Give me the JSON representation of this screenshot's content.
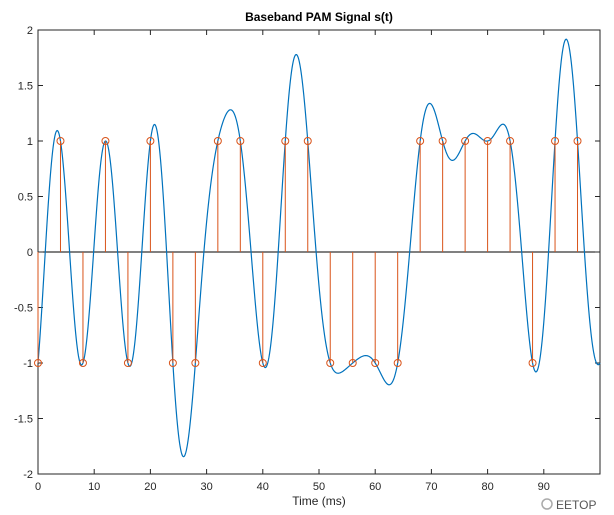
{
  "chart_data": {
    "type": "line",
    "title": "Baseband PAM Signal s(t)",
    "xlabel": "Time (ms)",
    "ylabel": "",
    "xlim": [
      0,
      100
    ],
    "ylim": [
      -2,
      2
    ],
    "xticks": [
      "0",
      "10",
      "20",
      "30",
      "40",
      "50",
      "60",
      "70",
      "80",
      "90"
    ],
    "yticks": [
      "2",
      "1.5",
      "1",
      "0.5",
      "0",
      "-0.5",
      "-1",
      "-1.5",
      "-2"
    ],
    "grid": false,
    "symbol_period_ms": 4,
    "samples": {
      "x": [
        0,
        4,
        8,
        12,
        16,
        20,
        24,
        28,
        32,
        36,
        40,
        44,
        48,
        52,
        56,
        60,
        64,
        68,
        72,
        76,
        80,
        84,
        88,
        92,
        96
      ],
      "y": [
        -1,
        1,
        -1,
        1,
        -1,
        1,
        -1,
        -1,
        1,
        1,
        -1,
        1,
        1,
        -1,
        -1,
        -1,
        -1,
        1,
        1,
        1,
        1,
        1,
        -1,
        1,
        1
      ]
    },
    "series": [
      {
        "style": "continuous sinc-interpolated curve",
        "color": "#0072BD"
      },
      {
        "style": "stem with circle markers",
        "color": "#D95319"
      }
    ]
  },
  "watermark": "EETOP"
}
